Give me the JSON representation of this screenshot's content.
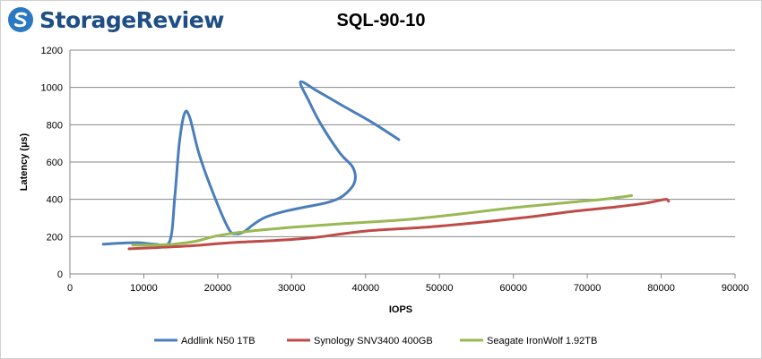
{
  "brand": {
    "name": "StorageReview"
  },
  "chart_data": {
    "type": "line",
    "title": "SQL-90-10",
    "xlabel": "IOPS",
    "ylabel": "Latency (µs)",
    "xlim": [
      0,
      90000
    ],
    "ylim": [
      0,
      1200
    ],
    "xticks": [
      0,
      10000,
      20000,
      30000,
      40000,
      50000,
      60000,
      70000,
      80000,
      90000
    ],
    "yticks": [
      0,
      200,
      400,
      600,
      800,
      1000,
      1200
    ],
    "grid": "horizontal",
    "legend": "bottom",
    "series": [
      {
        "name": "Addlink N50 1TB",
        "color": "#4a7ebb",
        "points": [
          [
            4500,
            160
          ],
          [
            9000,
            168
          ],
          [
            11500,
            160
          ],
          [
            13500,
            175
          ],
          [
            14200,
            420
          ],
          [
            14800,
            700
          ],
          [
            15500,
            860
          ],
          [
            16200,
            840
          ],
          [
            17500,
            640
          ],
          [
            19500,
            420
          ],
          [
            21500,
            240
          ],
          [
            22500,
            215
          ],
          [
            23500,
            225
          ],
          [
            25000,
            270
          ],
          [
            26500,
            305
          ],
          [
            29000,
            335
          ],
          [
            32000,
            360
          ],
          [
            35000,
            385
          ],
          [
            37000,
            420
          ],
          [
            38500,
            490
          ],
          [
            38300,
            570
          ],
          [
            36500,
            650
          ],
          [
            34000,
            800
          ],
          [
            32300,
            930
          ],
          [
            31200,
            1030
          ],
          [
            33500,
            980
          ],
          [
            37000,
            900
          ],
          [
            41000,
            810
          ],
          [
            44500,
            720
          ]
        ]
      },
      {
        "name": "Synology SNV3400 400GB",
        "color": "#be4b48",
        "points": [
          [
            8000,
            135
          ],
          [
            11000,
            140
          ],
          [
            16000,
            150
          ],
          [
            22000,
            168
          ],
          [
            28000,
            180
          ],
          [
            33000,
            195
          ],
          [
            40000,
            230
          ],
          [
            48000,
            250
          ],
          [
            55000,
            275
          ],
          [
            62000,
            305
          ],
          [
            68000,
            335
          ],
          [
            74000,
            360
          ],
          [
            78000,
            380
          ],
          [
            80500,
            400
          ],
          [
            81000,
            390
          ]
        ]
      },
      {
        "name": "Seagate IronWolf 1.92TB",
        "color": "#98b954",
        "points": [
          [
            8500,
            155
          ],
          [
            11000,
            155
          ],
          [
            14000,
            160
          ],
          [
            17000,
            175
          ],
          [
            20000,
            205
          ],
          [
            24000,
            228
          ],
          [
            30000,
            250
          ],
          [
            37000,
            270
          ],
          [
            45000,
            290
          ],
          [
            52000,
            318
          ],
          [
            60000,
            355
          ],
          [
            68000,
            385
          ],
          [
            72000,
            400
          ],
          [
            76000,
            420
          ]
        ]
      }
    ]
  }
}
